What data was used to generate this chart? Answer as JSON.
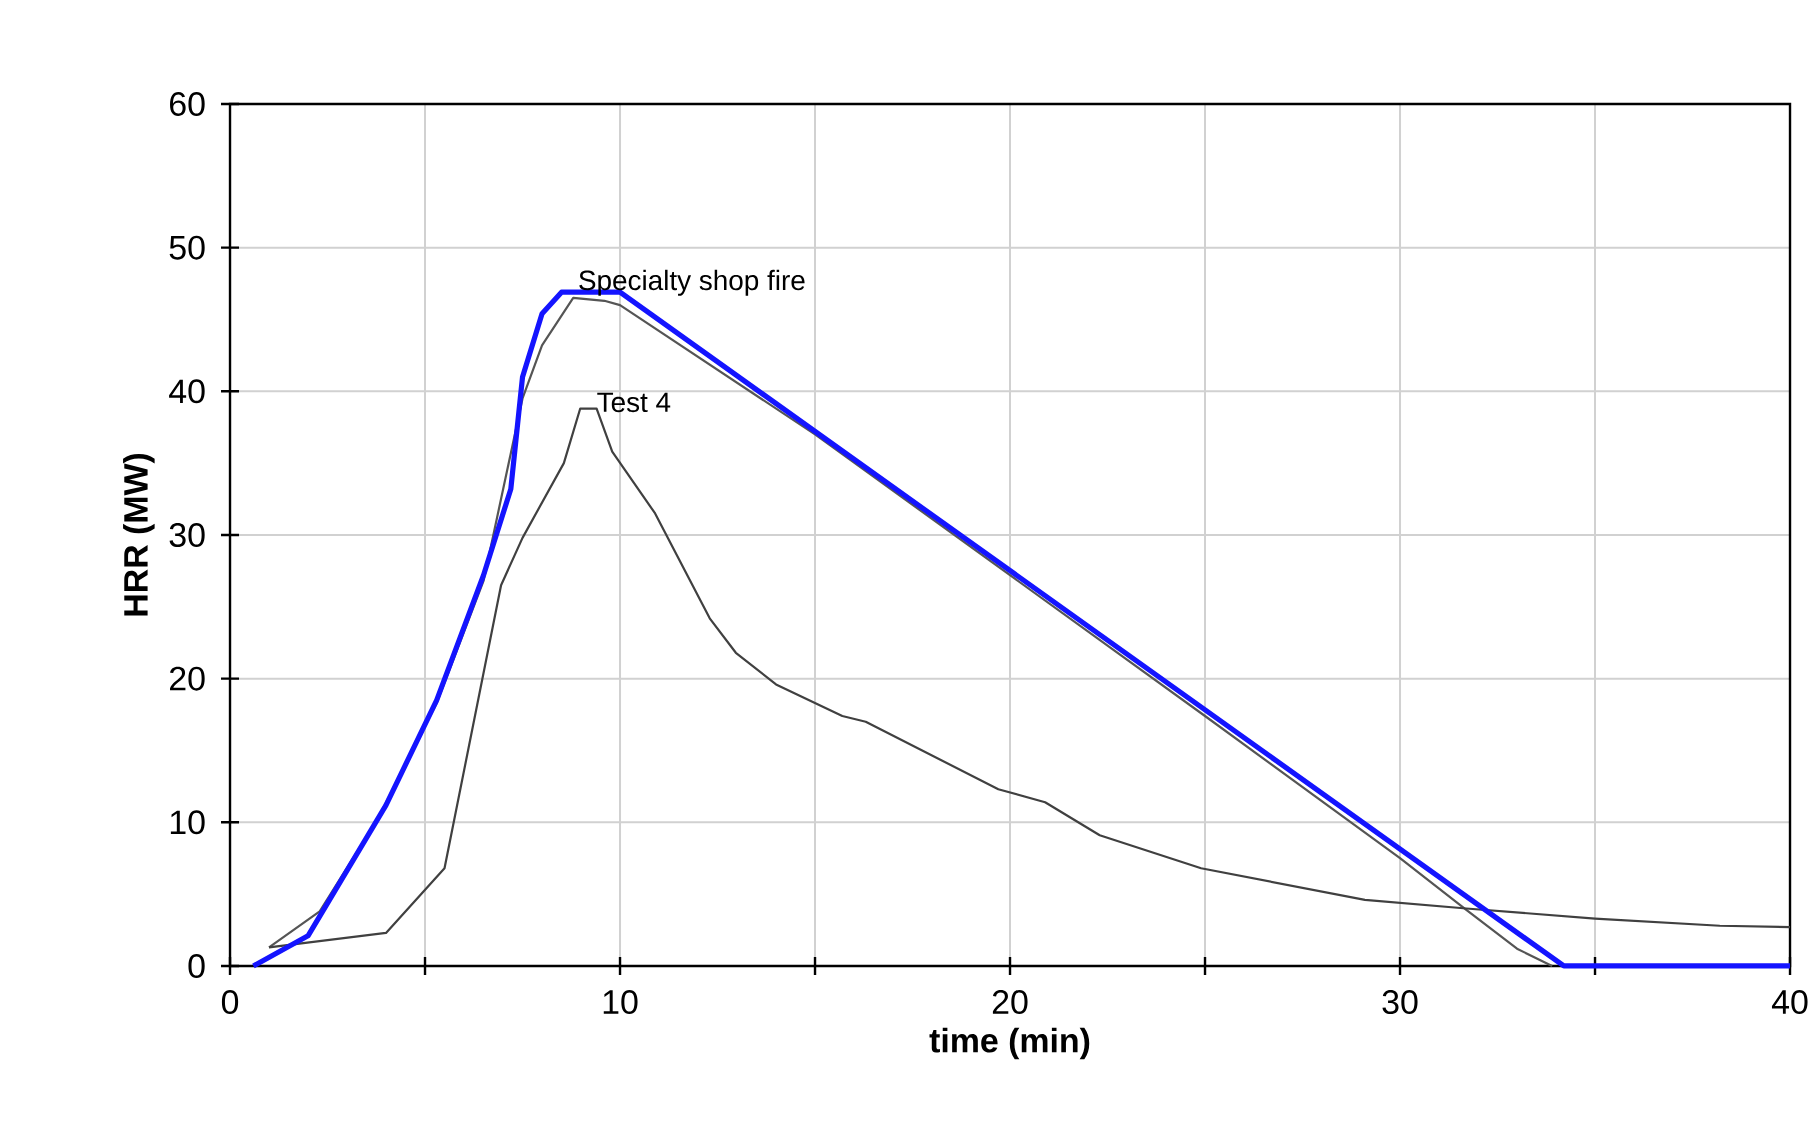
{
  "chart_data": {
    "type": "line",
    "xlabel": "time (min)",
    "ylabel": "HRR (MW)",
    "xlim": [
      0,
      40
    ],
    "ylim": [
      0,
      60
    ],
    "xticks": [
      0,
      {
        "value": 5,
        "label": null
      },
      10,
      {
        "value": 15,
        "label": null
      },
      20,
      {
        "value": 25,
        "label": null
      },
      30,
      {
        "value": 35,
        "label": null
      },
      40
    ],
    "yticks": [
      0,
      10,
      20,
      30,
      40,
      50,
      60
    ],
    "grid": true,
    "marker": "none",
    "line_style": "solid",
    "series": [
      {
        "color": "#555555",
        "x": [
          1.0,
          2.3,
          3.8,
          5.3,
          6.5,
          7.5,
          8.0,
          8.8,
          9.6,
          10,
          15,
          20,
          25,
          30,
          31.7,
          33,
          33.9
        ],
        "values": [
          1.3,
          3.8,
          10.3,
          18.3,
          26.8,
          39.5,
          43.2,
          46.5,
          46.3,
          46.0,
          37.0,
          27.2,
          17.4,
          7.5,
          3.9,
          1.2,
          0
        ]
      },
      {
        "name": "Test 4",
        "color": "#404040",
        "x": [
          1.0,
          4.0,
          5.5,
          6.95,
          7.5,
          8.56,
          8.98,
          9.4,
          9.8,
          10.9,
          12.3,
          12.97,
          14,
          15.7,
          16.3,
          19.7,
          20.9,
          22.3,
          24.9,
          29.1,
          31.7,
          35,
          38.2,
          40
        ],
        "values": [
          1.3,
          2.3,
          6.8,
          26.5,
          29.8,
          35,
          38.8,
          38.8,
          35.8,
          31.5,
          24.2,
          21.8,
          19.6,
          17.4,
          17,
          12.3,
          11.4,
          9.1,
          6.8,
          4.6,
          4.0,
          3.3,
          2.8,
          2.7
        ]
      },
      {
        "name": "Specialty shop fire",
        "color": "#1414ff",
        "x": [
          0.6,
          2,
          4,
          5.3,
          6.5,
          7.2,
          7.5,
          8,
          8.5,
          10,
          34.2,
          40
        ],
        "values": [
          0,
          2.1,
          11.2,
          18.5,
          27.2,
          33.2,
          41,
          45.4,
          46.9,
          46.9,
          0,
          0
        ]
      }
    ]
  }
}
